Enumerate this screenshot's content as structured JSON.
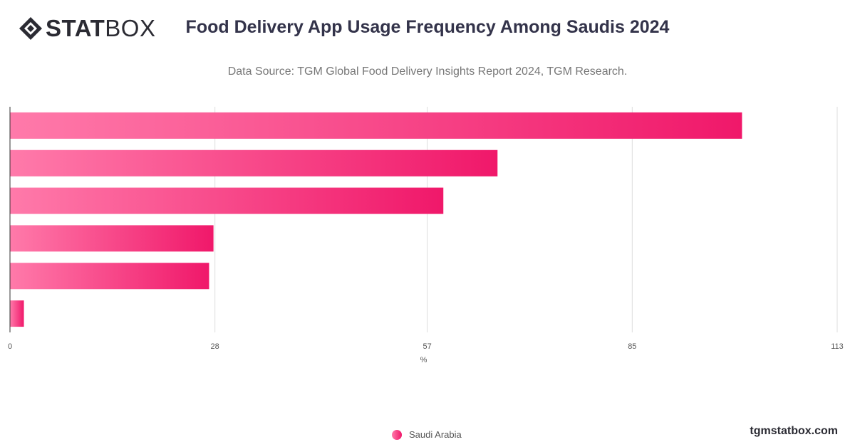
{
  "brand": {
    "logo_bold": "STAT",
    "logo_light": "BOX",
    "site": "tgmstatbox.com"
  },
  "header": {
    "title": "Food Delivery App Usage Frequency Among Saudis 2024",
    "subtitle": "Data Source: TGM Global Food Delivery Insights Report 2024, TGM Research."
  },
  "colors": {
    "bar_start": "#ff7aaa",
    "bar_end": "#f0186a",
    "grid": "#dddddd",
    "axis": "#333333"
  },
  "chart_data": {
    "type": "bar",
    "orientation": "horizontal",
    "title": "Food Delivery App Usage Frequency Among Saudis 2024",
    "xlabel": "%",
    "ylabel": "",
    "xlim": [
      0,
      113
    ],
    "xticks": [
      0,
      28,
      57,
      85,
      113
    ],
    "categories": [
      "",
      "",
      "",
      "",
      "",
      ""
    ],
    "series": [
      {
        "name": "Saudi Arabia",
        "values": [
          100,
          66.6,
          59.2,
          27.8,
          27.2,
          1.9
        ]
      }
    ],
    "grid": true,
    "legend_position": "bottom-center"
  }
}
